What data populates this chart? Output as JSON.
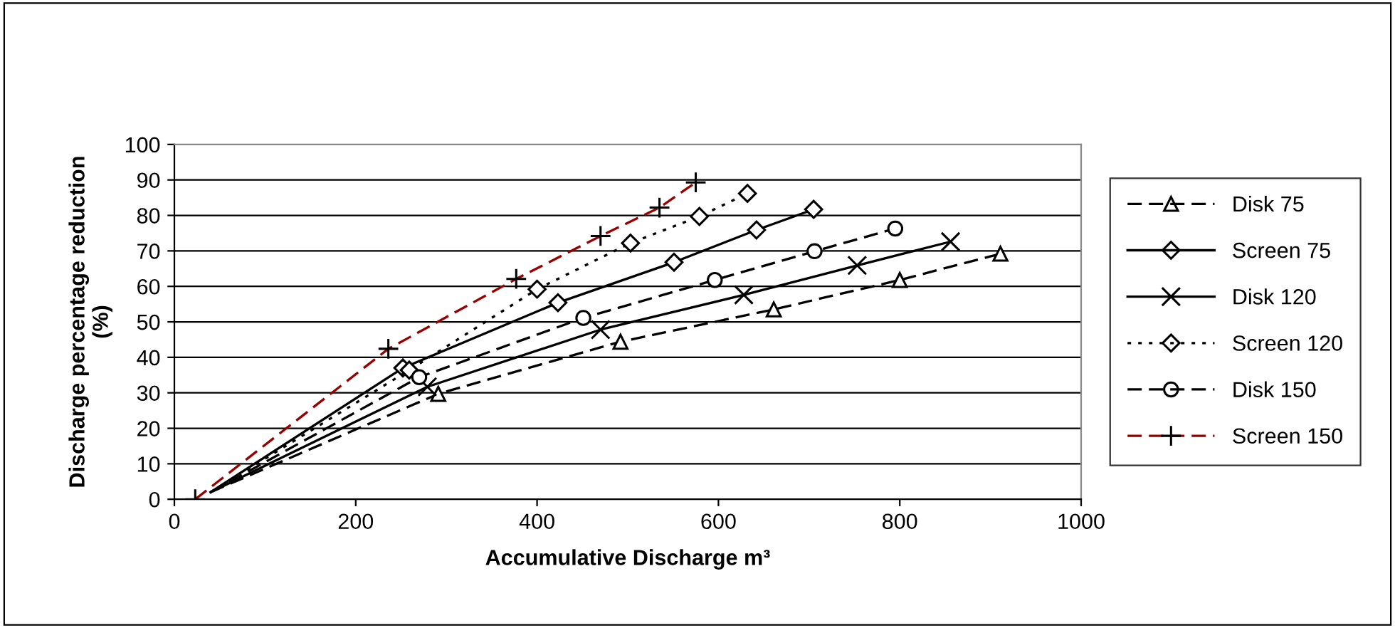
{
  "chart_data": {
    "type": "line",
    "xlabel": "Accumulative Discharge m³",
    "ylabel": "Discharge percentage reduction\n(%)",
    "xlim": [
      0,
      1000
    ],
    "xticks": [
      0,
      200,
      400,
      600,
      800,
      1000
    ],
    "ylim": [
      0,
      100
    ],
    "yticks": [
      0,
      10,
      20,
      30,
      40,
      50,
      60,
      70,
      80,
      90,
      100
    ],
    "grid": "y",
    "legend": "right",
    "series": [
      {
        "name": "Disk 75",
        "color": "#000000",
        "marker": "triangle",
        "line_style": "dashed",
        "x": [
          40,
          291,
          492,
          661,
          800,
          911
        ],
        "values": [
          2,
          29.7,
          44.4,
          53.5,
          61.8,
          69.2
        ]
      },
      {
        "name": "Screen 75",
        "color": "#000000",
        "marker": "diamond",
        "line_style": "solid",
        "x": [
          40,
          252,
          423,
          551,
          642,
          705
        ],
        "values": [
          2,
          37,
          55.4,
          66.8,
          75.9,
          81.7
        ]
      },
      {
        "name": "Disk 120",
        "color": "#000000",
        "marker": "cross",
        "line_style": "solid",
        "x": [
          40,
          279,
          470,
          628,
          753,
          856
        ],
        "values": [
          2,
          31.7,
          47.8,
          57.6,
          65.9,
          72.6
        ]
      },
      {
        "name": "Screen 120",
        "color": "#000000",
        "marker": "diamond",
        "line_style": "dotted",
        "x": [
          40,
          259,
          400,
          503,
          579,
          632
        ],
        "values": [
          2,
          36.4,
          59.2,
          72.2,
          79.7,
          86.2
        ]
      },
      {
        "name": "Disk 150",
        "color": "#000000",
        "marker": "circle",
        "line_style": "dashed",
        "x": [
          40,
          270,
          451,
          596,
          706,
          795
        ],
        "values": [
          2,
          34.4,
          51.1,
          61.8,
          69.9,
          76.3
        ]
      },
      {
        "name": "Screen 150",
        "color": "#990000",
        "marker": "plus",
        "line_style": "dashed",
        "x": [
          23,
          236,
          377,
          470,
          535,
          575
        ],
        "values": [
          0,
          42.4,
          62.1,
          74.2,
          82.2,
          89.3
        ]
      }
    ]
  }
}
